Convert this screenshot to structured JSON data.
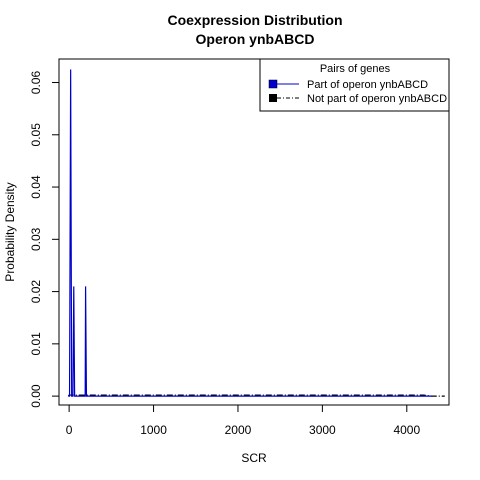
{
  "chart_data": {
    "type": "line",
    "title": [
      "Coexpression Distribution",
      "Operon ynbABCD"
    ],
    "xlabel": "SCR",
    "ylabel": "Probability Density",
    "xlim": [
      -120,
      4500
    ],
    "ylim": [
      -0.0017,
      0.0645
    ],
    "xticks": [
      0,
      1000,
      2000,
      3000,
      4000
    ],
    "yticks": [
      0.0,
      0.01,
      0.02,
      0.03,
      0.04,
      0.05,
      0.06
    ],
    "ytick_labels": [
      "0.00",
      "0.01",
      "0.02",
      "0.03",
      "0.04",
      "0.05",
      "0.06"
    ],
    "grid": false,
    "legend": {
      "title": "Pairs of genes",
      "position": "top-right",
      "entries": [
        {
          "label": "Part of operon ynbABCD",
          "color": "#0000cc",
          "line": "solid"
        },
        {
          "label": "Not part of operon ynbABCD",
          "color": "#000000",
          "line": "dashdot"
        }
      ]
    },
    "series": [
      {
        "name": "Part of operon ynbABCD",
        "color": "#0000cc",
        "x": [
          -10,
          5,
          18,
          30,
          40,
          45,
          55,
          65,
          75,
          85,
          95,
          150,
          185,
          190,
          195,
          205,
          215,
          4300
        ],
        "y": [
          0.0,
          0.0,
          0.0625,
          0.0,
          0.0,
          0.0,
          0.021,
          0.0,
          0.0,
          0.0,
          0.0,
          0.0,
          0.0,
          0.0,
          0.021,
          0.0,
          0.0,
          0.0
        ]
      },
      {
        "name": "Not part of operon ynbABCD",
        "color": "#000000",
        "x": [
          -10,
          0,
          500,
          1000,
          2000,
          3000,
          4000,
          4200,
          4300,
          4450
        ],
        "y": [
          0.0,
          0.0002,
          0.0002,
          0.0002,
          0.0002,
          0.0002,
          0.0002,
          0.0002,
          0.0,
          0.0
        ]
      }
    ]
  }
}
